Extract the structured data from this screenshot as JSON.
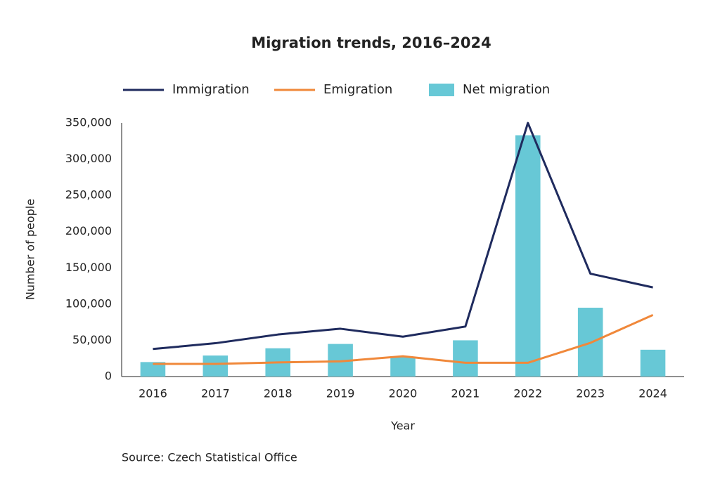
{
  "chart_data": {
    "type": "bar",
    "title": "Migration trends, 2016–2024",
    "x_label": "Year",
    "y_label": "Number of people",
    "source": "Source: Czech Statistical Office",
    "categories": [
      "2016",
      "2017",
      "2018",
      "2019",
      "2020",
      "2021",
      "2022",
      "2023",
      "2024"
    ],
    "series": [
      {
        "name": "Immigration",
        "type": "line",
        "color": "#1f2b5e",
        "values": [
          38000,
          46000,
          58000,
          66000,
          55000,
          69000,
          350000,
          142000,
          123000
        ]
      },
      {
        "name": "Emigration",
        "type": "line",
        "color": "#f0883a",
        "values": [
          17500,
          17500,
          19500,
          21000,
          28000,
          19000,
          19000,
          46500,
          85000
        ]
      },
      {
        "name": "Net migration",
        "type": "bar",
        "color": "#67c8d6",
        "values": [
          20000,
          29000,
          39000,
          45000,
          27000,
          50000,
          333000,
          95000,
          37000
        ]
      }
    ],
    "ylim": [
      0,
      350000
    ],
    "yticks": [
      0,
      {
        "value": 50000,
        "label": "50,000"
      },
      {
        "value": 100000,
        "label": "100,000"
      },
      {
        "value": 150000,
        "label": "150,000"
      },
      {
        "value": 200000,
        "label": "200,000"
      },
      {
        "value": 250000,
        "label": "250,000"
      },
      {
        "value": 300000,
        "label": "300,000"
      },
      {
        "value": 350000,
        "label": "350,000"
      }
    ],
    "grid": false,
    "legend": "top"
  }
}
